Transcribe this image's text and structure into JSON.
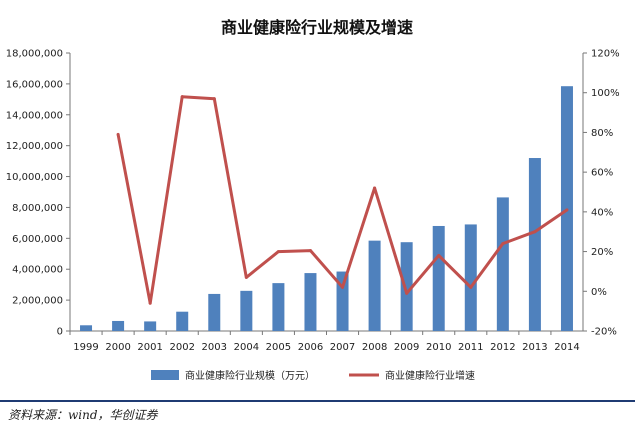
{
  "chart_data": {
    "type": "bar",
    "title": "商业健康险行业规模及增速",
    "categories": [
      "1999",
      "2000",
      "2001",
      "2002",
      "2003",
      "2004",
      "2005",
      "2006",
      "2007",
      "2008",
      "2009",
      "2010",
      "2011",
      "2012",
      "2013",
      "2014"
    ],
    "series": [
      {
        "name": "商业健康险行业规模（万元）",
        "type": "bar",
        "axis": "left",
        "color": "#4f81bd",
        "values": [
          370000,
          650000,
          620000,
          1250000,
          2400000,
          2600000,
          3100000,
          3750000,
          3850000,
          5850000,
          5750000,
          6800000,
          6900000,
          8650000,
          11200000,
          15850000
        ]
      },
      {
        "name": "商业健康险行业增速",
        "type": "line",
        "axis": "right",
        "color": "#c0504d",
        "values": [
          null,
          79,
          -6,
          98,
          97,
          7,
          20,
          20.5,
          2,
          52,
          -1,
          18,
          2,
          24,
          30,
          41
        ]
      }
    ],
    "y_left": {
      "ylim": [
        0,
        18000000
      ],
      "ticks": [
        "0",
        "2,000,000",
        "4,000,000",
        "6,000,000",
        "8,000,000",
        "10,000,000",
        "12,000,000",
        "14,000,000",
        "16,000,000",
        "18,000,000"
      ]
    },
    "y_right": {
      "ylim": [
        -20,
        120
      ],
      "ticks": [
        "-20%",
        "0%",
        "20%",
        "40%",
        "60%",
        "80%",
        "100%",
        "120%"
      ]
    },
    "legend_position": "bottom",
    "grid": false
  },
  "source": "资料来源：wind，华创证券"
}
